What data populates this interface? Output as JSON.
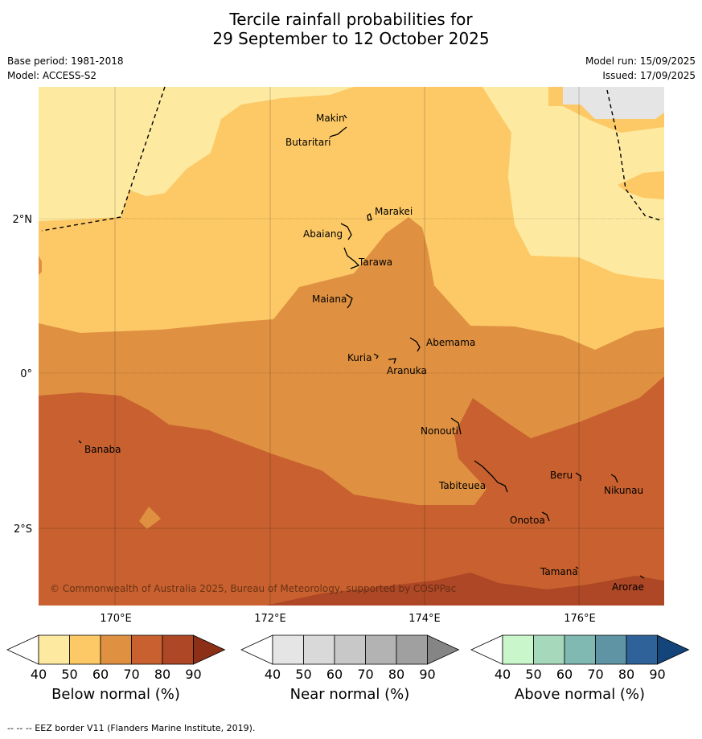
{
  "title": {
    "line1": "Tercile rainfall probabilities for",
    "line2": "29 September to 12 October 2025"
  },
  "info": {
    "base_period": "Base period: 1981-2018",
    "model": "Model: ACCESS-S2",
    "model_run": "Model run: 15/09/2025",
    "issued": "Issued: 17/09/2025"
  },
  "map": {
    "latitude_labels": [
      "2°N",
      "0°",
      "2°S"
    ],
    "longitude_labels": [
      "170°E",
      "172°E",
      "174°E",
      "176°E"
    ],
    "places": [
      "Makin",
      "Butaritari",
      "Marakei",
      "Abaiang",
      "Tarawa",
      "Maiana",
      "Abemama",
      "Kuria",
      "Aranuka",
      "Banaba",
      "Nonouti",
      "Tabiteuea",
      "Beru",
      "Nikunau",
      "Onotoa",
      "Tamana",
      "Arorae"
    ],
    "copyright": "© Commonwealth of Australia 2025, Bureau of Meteorology, supported by COSPPac"
  },
  "colors": {
    "below": [
      "#fdeaa0",
      "#fdc966",
      "#df9141",
      "#c8612f",
      "#ad4725",
      "#8c2f17"
    ],
    "near": [
      "#e5e5e5",
      "#d9d9d9",
      "#c8c8c8",
      "#b3b3b3",
      "#a0a0a0",
      "#858585"
    ],
    "above": [
      "#c9f7cb",
      "#a6d9bc",
      "#80b8b2",
      "#5e94a4",
      "#2e6298",
      "#13447a"
    ]
  },
  "legends": [
    {
      "key": "below",
      "title": "Below normal (%)",
      "ticks": [
        "40",
        "50",
        "60",
        "70",
        "80",
        "90"
      ]
    },
    {
      "key": "near",
      "title": "Near normal (%)",
      "ticks": [
        "40",
        "50",
        "60",
        "70",
        "80",
        "90"
      ]
    },
    {
      "key": "above",
      "title": "Above normal (%)",
      "ticks": [
        "40",
        "50",
        "60",
        "70",
        "80",
        "90"
      ]
    }
  ],
  "footer": "-- -- -- EEZ border V11 (Flanders Marine Institute, 2019)."
}
